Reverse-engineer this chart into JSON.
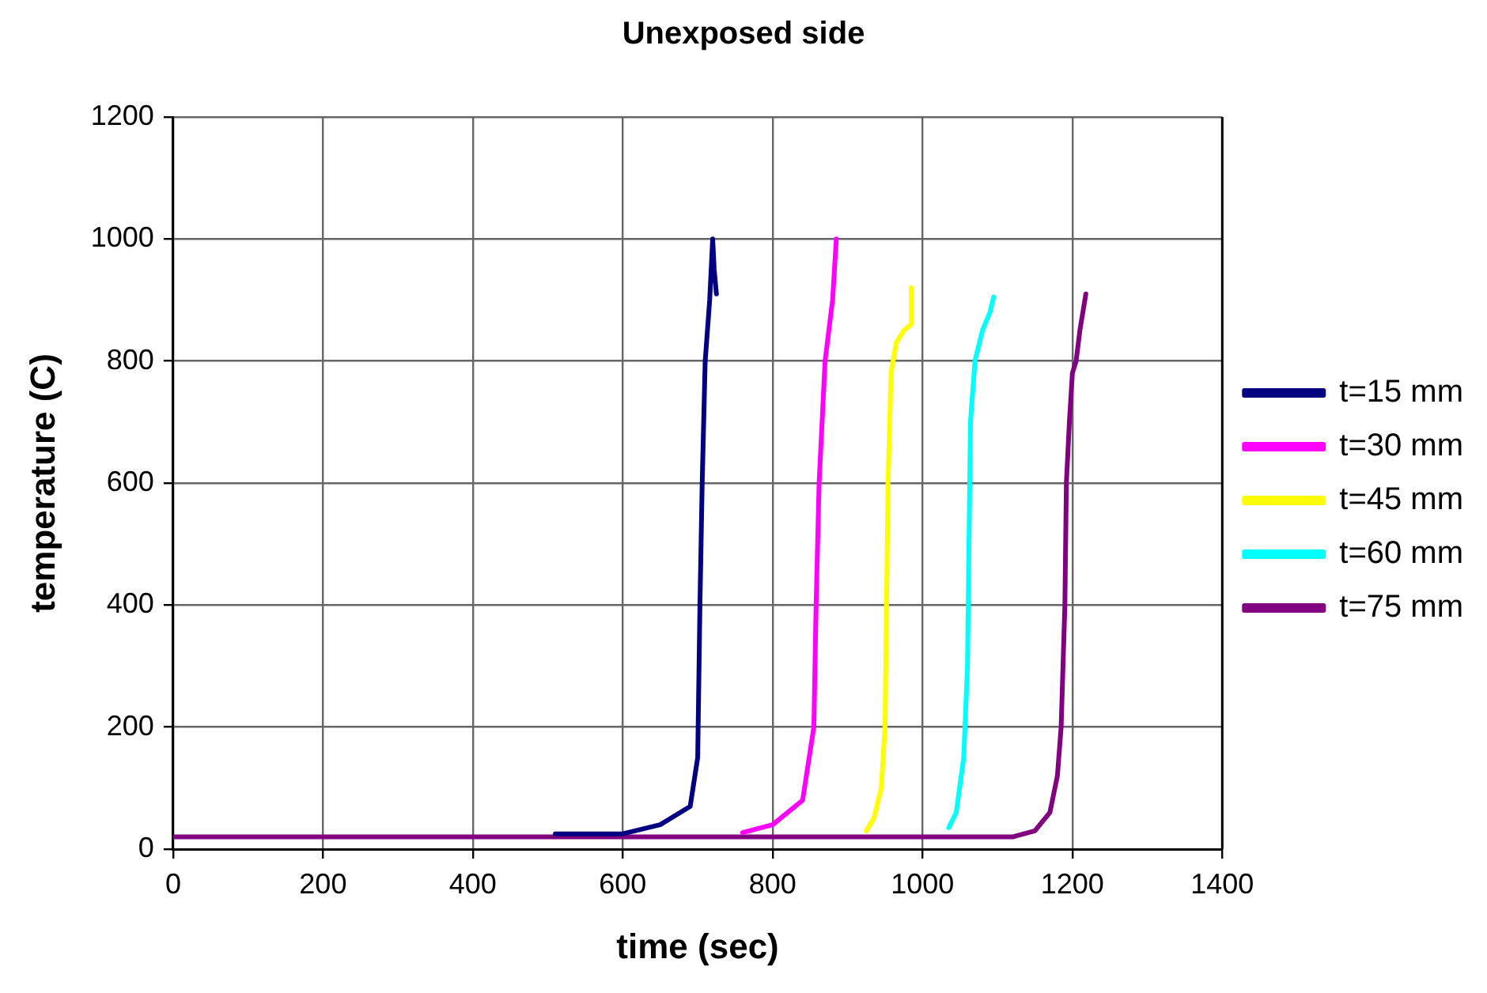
{
  "chart_data": {
    "type": "line",
    "title": "Unexposed side",
    "xlabel": "time (sec)",
    "ylabel": "temperature (C)",
    "xlim": [
      0,
      1400
    ],
    "xticks": [
      0,
      200,
      400,
      600,
      800,
      1000,
      1200,
      1400
    ],
    "ylim": [
      0,
      1200
    ],
    "yticks": [
      0,
      200,
      400,
      600,
      800,
      1000,
      1200
    ],
    "grid": true,
    "legend": "right",
    "marker": "none",
    "line_style": "solid",
    "series": [
      {
        "name": "t=15 mm",
        "color": "#000080",
        "x": [
          510,
          600,
          650,
          690,
          700,
          703,
          706,
          710,
          716,
          720,
          722,
          725
        ],
        "values": [
          25,
          25,
          40,
          70,
          150,
          400,
          600,
          800,
          900,
          1000,
          950,
          910
        ]
      },
      {
        "name": "t=30 mm",
        "color": "#ff00ff",
        "x": [
          760,
          800,
          840,
          855,
          858,
          862,
          866,
          870,
          875,
          880,
          885
        ],
        "values": [
          27,
          40,
          80,
          200,
          400,
          600,
          700,
          800,
          850,
          900,
          1000
        ]
      },
      {
        "name": "t=45 mm",
        "color": "#ffff00",
        "x": [
          925,
          935,
          945,
          950,
          952,
          954,
          958,
          965,
          975,
          985,
          985
        ],
        "values": [
          30,
          50,
          100,
          200,
          400,
          600,
          780,
          830,
          850,
          860,
          920
        ]
      },
      {
        "name": "t=60 mm",
        "color": "#00ffff",
        "x": [
          1035,
          1045,
          1055,
          1060,
          1062,
          1064,
          1070,
          1080,
          1090,
          1095
        ],
        "values": [
          35,
          60,
          150,
          300,
          500,
          700,
          800,
          850,
          880,
          905
        ]
      },
      {
        "name": "t=75 mm",
        "color": "#800080",
        "x": [
          0,
          1120,
          1150,
          1170,
          1180,
          1185,
          1190,
          1192,
          1196,
          1200,
          1205,
          1210,
          1218
        ],
        "values": [
          20,
          20,
          30,
          60,
          120,
          200,
          400,
          600,
          700,
          780,
          800,
          850,
          910
        ]
      }
    ]
  }
}
